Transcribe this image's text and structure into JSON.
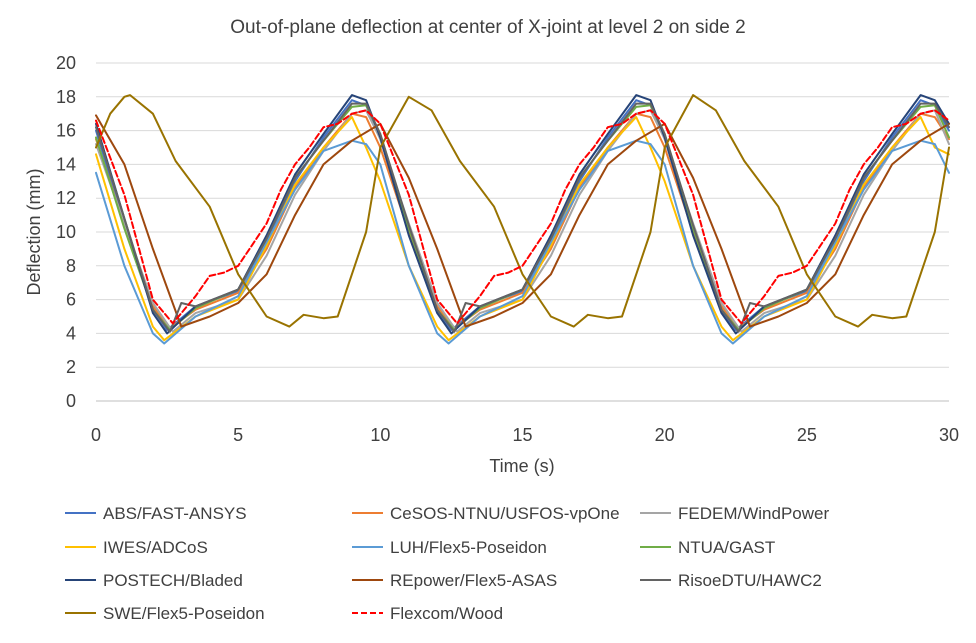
{
  "chart_data": {
    "type": "line",
    "title": "Out-of-plane deflection at center of X-joint at level 2 on side 2",
    "xlabel": "Time (s)",
    "ylabel": "Deflection (mm)",
    "xlim": [
      0,
      30
    ],
    "ylim": [
      0,
      20
    ],
    "xticks": [
      0,
      5,
      10,
      15,
      20,
      25,
      30
    ],
    "yticks": [
      0,
      2,
      4,
      6,
      8,
      10,
      12,
      14,
      16,
      18,
      20
    ],
    "grid": "horizontal",
    "legend_position": "bottom",
    "series": [
      {
        "name": "ABS/FAST-ANSYS",
        "color": "#4472c4",
        "dash": "solid",
        "x": [
          0,
          1,
          2,
          2.5,
          3.5,
          5,
          6,
          7,
          8,
          9,
          9.5,
          10,
          11,
          12,
          12.5,
          13.5,
          15,
          16,
          17,
          18,
          19,
          19.5,
          20,
          21,
          22,
          22.5,
          23.5,
          25,
          26,
          27,
          28,
          29,
          29.5,
          30
        ],
        "y": [
          16.0,
          10.5,
          5.4,
          4.2,
          5.6,
          6.5,
          9.5,
          13.0,
          15.6,
          17.8,
          17.5,
          15.5,
          10.0,
          5.3,
          4.2,
          5.6,
          6.5,
          9.5,
          13.0,
          15.6,
          17.8,
          17.5,
          15.5,
          10.0,
          5.3,
          4.2,
          5.6,
          6.5,
          9.5,
          13.0,
          15.6,
          17.8,
          17.5,
          16.0
        ]
      },
      {
        "name": "CeSOS-NTNU/USFOS-vpOne",
        "color": "#ed7d31",
        "dash": "solid",
        "x": [
          0,
          1,
          2,
          2.6,
          3.5,
          5,
          6,
          7,
          8,
          9,
          9.5,
          10,
          11,
          12,
          12.6,
          13.5,
          15,
          16,
          17,
          18,
          19,
          19.5,
          20,
          21,
          22,
          22.6,
          23.5,
          25,
          26,
          27,
          28,
          29,
          29.5,
          30
        ],
        "y": [
          15.5,
          10.4,
          5.6,
          4.3,
          5.4,
          6.4,
          9.0,
          12.6,
          15.0,
          17.0,
          16.8,
          15.0,
          10.0,
          5.6,
          4.3,
          5.4,
          6.4,
          9.0,
          12.6,
          15.0,
          17.0,
          16.8,
          15.0,
          10.0,
          5.6,
          4.3,
          5.4,
          6.4,
          9.0,
          12.6,
          15.0,
          17.0,
          16.8,
          15.5
        ]
      },
      {
        "name": "FEDEM/WindPower",
        "color": "#a5a5a5",
        "dash": "solid",
        "x": [
          0,
          1,
          2,
          2.7,
          3.5,
          5,
          6,
          7,
          8,
          9,
          9.5,
          10,
          11,
          12,
          12.7,
          13.5,
          15,
          16,
          17,
          18,
          19,
          19.5,
          20,
          21,
          22,
          22.7,
          23.5,
          25,
          26,
          27,
          28,
          29,
          29.5,
          30
        ],
        "y": [
          15.2,
          10.5,
          5.8,
          4.1,
          5.2,
          6.0,
          8.6,
          12.2,
          14.8,
          17.0,
          17.2,
          15.5,
          10.5,
          5.8,
          4.1,
          5.2,
          6.0,
          8.6,
          12.2,
          14.8,
          17.0,
          17.2,
          15.5,
          10.5,
          5.8,
          4.1,
          5.2,
          6.0,
          8.6,
          12.2,
          14.8,
          17.0,
          17.2,
          15.2
        ]
      },
      {
        "name": "IWES/ADCoS",
        "color": "#ffc000",
        "dash": "solid",
        "x": [
          0,
          1,
          2,
          2.4,
          3.5,
          5,
          6,
          7,
          8,
          9,
          9.5,
          10,
          11,
          12,
          12.4,
          13.5,
          15,
          16,
          17,
          18,
          19,
          19.5,
          20,
          21,
          22,
          22.4,
          23.5,
          25,
          26,
          27,
          28,
          29,
          29.5,
          30
        ],
        "y": [
          14.6,
          9.0,
          4.4,
          3.6,
          5.0,
          6.0,
          9.2,
          12.8,
          15.0,
          16.8,
          15.0,
          13.0,
          8.0,
          4.4,
          3.6,
          5.0,
          6.0,
          9.2,
          12.8,
          15.0,
          16.8,
          15.0,
          13.0,
          8.0,
          4.4,
          3.6,
          5.0,
          6.0,
          9.2,
          12.8,
          15.0,
          16.8,
          15.0,
          14.6
        ]
      },
      {
        "name": "LUH/Flex5-Poseidon",
        "color": "#5b9bd5",
        "dash": "solid",
        "x": [
          0,
          1,
          2,
          2.4,
          3.5,
          5,
          6,
          7,
          8,
          9,
          9.5,
          10,
          11,
          12,
          12.4,
          13.5,
          15,
          16,
          17,
          18,
          19,
          19.5,
          20,
          21,
          22,
          22.4,
          23.5,
          25,
          26,
          27,
          28,
          29,
          29.5,
          30
        ],
        "y": [
          13.5,
          8.0,
          4.0,
          3.4,
          5.0,
          6.2,
          9.4,
          12.5,
          14.8,
          15.4,
          15.2,
          14.0,
          8.0,
          4.0,
          3.4,
          5.0,
          6.2,
          9.4,
          12.5,
          14.8,
          15.4,
          15.2,
          14.0,
          8.0,
          4.0,
          3.4,
          5.0,
          6.2,
          9.4,
          12.5,
          14.8,
          15.4,
          15.2,
          13.5
        ]
      },
      {
        "name": "NTUA/GAST",
        "color": "#70ad47",
        "dash": "solid",
        "x": [
          0,
          1,
          2,
          2.6,
          3.5,
          5,
          6,
          7,
          8,
          9,
          9.5,
          10,
          11,
          12,
          12.6,
          13.5,
          15,
          16,
          17,
          18,
          19,
          19.5,
          20,
          21,
          22,
          22.6,
          23.5,
          25,
          26,
          27,
          28,
          29,
          29.5,
          30
        ],
        "y": [
          15.6,
          10.2,
          5.4,
          4.2,
          5.5,
          6.6,
          9.6,
          13.2,
          15.4,
          17.4,
          17.5,
          15.8,
          10.2,
          5.4,
          4.2,
          5.5,
          6.6,
          9.6,
          13.2,
          15.4,
          17.4,
          17.5,
          15.8,
          10.2,
          5.4,
          4.2,
          5.5,
          6.6,
          9.6,
          13.2,
          15.4,
          17.4,
          17.5,
          15.6
        ]
      },
      {
        "name": "POSTECH/Bladed",
        "color": "#264478",
        "dash": "solid",
        "x": [
          0,
          1,
          2,
          2.5,
          3.5,
          5,
          6,
          7,
          8,
          9,
          9.5,
          10,
          11,
          12,
          12.5,
          13.5,
          15,
          16,
          17,
          18,
          19,
          19.5,
          20,
          21,
          22,
          22.5,
          23.5,
          25,
          26,
          27,
          28,
          29,
          29.5,
          30
        ],
        "y": [
          16.4,
          10.8,
          5.2,
          4.0,
          5.6,
          6.6,
          9.8,
          13.4,
          15.8,
          18.1,
          17.8,
          15.6,
          9.8,
          5.2,
          4.0,
          5.6,
          6.6,
          9.8,
          13.4,
          15.8,
          18.1,
          17.8,
          15.6,
          9.8,
          5.2,
          4.0,
          5.6,
          6.6,
          9.8,
          13.4,
          15.8,
          18.1,
          17.8,
          16.4
        ]
      },
      {
        "name": "REpower/Flex5-ASAS",
        "color": "#9e480e",
        "dash": "solid",
        "x": [
          0,
          1,
          2,
          3,
          4,
          5,
          6,
          7,
          8,
          9,
          10,
          11,
          12,
          13,
          14,
          15,
          16,
          17,
          18,
          19,
          20,
          21,
          22,
          23,
          24,
          25,
          26,
          27,
          28,
          29,
          30
        ],
        "y": [
          16.9,
          14.0,
          9.0,
          4.4,
          5.0,
          5.8,
          7.5,
          11.0,
          14.0,
          15.4,
          16.4,
          13.2,
          9.0,
          4.4,
          5.0,
          5.8,
          7.5,
          11.0,
          14.0,
          15.4,
          16.4,
          13.2,
          9.0,
          4.4,
          5.0,
          5.8,
          7.5,
          11.0,
          14.0,
          15.4,
          16.4
        ]
      },
      {
        "name": "RisoeDTU/HAWC2",
        "color": "#636363",
        "dash": "solid",
        "x": [
          0,
          1,
          2,
          2.6,
          3,
          3.5,
          5,
          6,
          7,
          8,
          9,
          9.5,
          10,
          11,
          12,
          12.6,
          13,
          13.5,
          15,
          16,
          17,
          18,
          19,
          19.5,
          20,
          21,
          22,
          22.6,
          23,
          23.5,
          25,
          26,
          27,
          28,
          29,
          29.5,
          30
        ],
        "y": [
          16.2,
          10.8,
          5.4,
          4.1,
          5.8,
          5.6,
          6.6,
          9.6,
          13.2,
          15.4,
          17.6,
          17.6,
          15.8,
          10.4,
          5.4,
          4.1,
          5.8,
          5.6,
          6.6,
          9.6,
          13.2,
          15.4,
          17.6,
          17.6,
          15.8,
          10.4,
          5.4,
          4.1,
          5.8,
          5.6,
          6.6,
          9.6,
          13.2,
          15.4,
          17.6,
          17.6,
          16.2
        ]
      },
      {
        "name": "SWE/Flex5-Poseidon",
        "color": "#997300",
        "dash": "solid",
        "x": [
          0,
          0.5,
          1,
          1.2,
          2,
          2.8,
          4,
          5,
          6,
          6.8,
          7.3,
          8,
          8.5,
          9.5,
          10,
          11,
          11.8,
          12.8,
          14,
          15,
          16,
          16.8,
          17.3,
          18,
          18.5,
          19.5,
          20,
          21,
          21.8,
          22.8,
          24,
          25,
          26,
          26.8,
          27.3,
          28,
          28.5,
          29.5,
          30
        ],
        "y": [
          15.0,
          17.0,
          18.0,
          18.1,
          17.0,
          14.2,
          11.5,
          7.5,
          5.0,
          4.4,
          5.1,
          4.9,
          5.0,
          10.0,
          15.0,
          18.0,
          17.2,
          14.2,
          11.5,
          7.5,
          5.0,
          4.4,
          5.1,
          4.9,
          5.0,
          10.0,
          15.0,
          18.1,
          17.2,
          14.2,
          11.5,
          7.5,
          5.0,
          4.4,
          5.1,
          4.9,
          5.0,
          10.0,
          15.0
        ]
      },
      {
        "name": "Flexcom/Wood",
        "color": "#ff0000",
        "dash": "dashed",
        "x": [
          0,
          1,
          2,
          2.7,
          3.5,
          4,
          4.5,
          5,
          6,
          6.5,
          7,
          7.5,
          8,
          8.5,
          9,
          9.5,
          10,
          11,
          12,
          12.7,
          13.5,
          14,
          14.5,
          15,
          16,
          16.5,
          17,
          17.5,
          18,
          18.5,
          19,
          19.5,
          20,
          21,
          22,
          22.7,
          23.5,
          24,
          24.5,
          25,
          26,
          26.5,
          27,
          27.5,
          28,
          28.5,
          29,
          29.5,
          30
        ],
        "y": [
          16.6,
          12.2,
          6.0,
          4.6,
          6.2,
          7.4,
          7.6,
          8.0,
          10.5,
          12.5,
          14.0,
          15.0,
          16.2,
          16.4,
          17.0,
          17.2,
          16.4,
          12.2,
          6.0,
          4.6,
          6.2,
          7.4,
          7.6,
          8.0,
          10.5,
          12.5,
          14.0,
          15.0,
          16.2,
          16.4,
          17.0,
          17.2,
          16.4,
          12.2,
          6.0,
          4.6,
          6.2,
          7.4,
          7.6,
          8.0,
          10.5,
          12.5,
          14.0,
          15.0,
          16.2,
          16.4,
          17.0,
          17.2,
          16.6
        ]
      }
    ]
  }
}
